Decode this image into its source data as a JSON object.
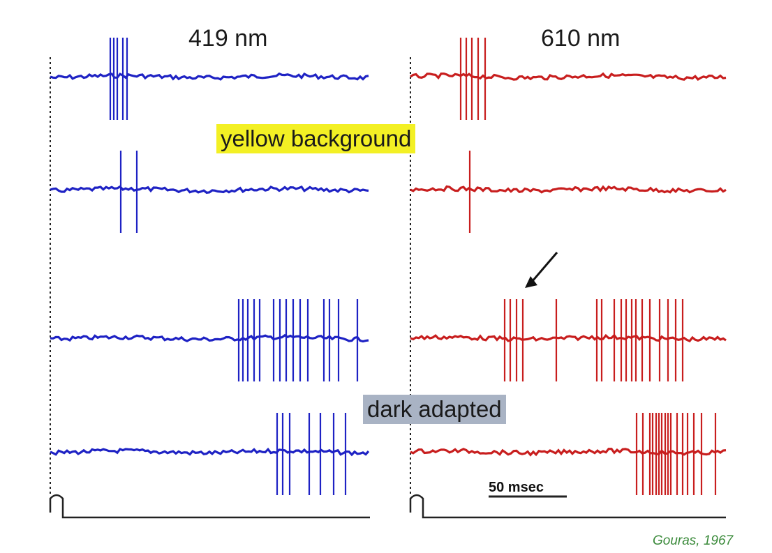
{
  "figure": {
    "columns": [
      {
        "label": "419 nm",
        "trace_color": "#1e22c4"
      },
      {
        "label": "610 nm",
        "trace_color": "#c81e1e"
      }
    ],
    "labels": {
      "yellow_background": "yellow background",
      "dark_adapted": "dark adapted",
      "scale_bar": "50 msec",
      "citation": "Gouras, 1967"
    },
    "colors": {
      "yellow_highlight": "#f3f024",
      "gray_highlight": "#a9b3c4",
      "citation": "#3a8a3a",
      "axis": "#222222"
    },
    "conditions": [
      "yellow background",
      "yellow background",
      "dark adapted",
      "dark adapted"
    ]
  }
}
